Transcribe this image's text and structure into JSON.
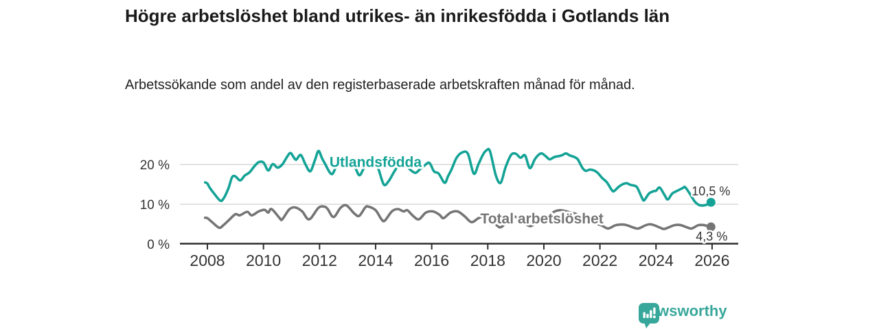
{
  "header": {
    "title": "Högre arbetslöshet bland utrikes- än inrikesfödda i Gotlands län",
    "subtitle": "Arbetssökande som andel av den registerbaserade arbetskraften månad för månad."
  },
  "footer": {
    "brand": "Newsworthy",
    "logo_icon": "speech-bubble-bar-chart-icon"
  },
  "colors": {
    "accent_teal": "#14a396",
    "series_gray": "#757575",
    "title_text": "#1a1a1a",
    "axis_text": "#333333",
    "gridline": "#d9d9d9",
    "axis_line": "#2e2e2e",
    "logo_teal": "#38a79b"
  },
  "chart_data": {
    "type": "line",
    "unit": "percent",
    "x_unit": "decimal years (monthly data)",
    "grid": "horizontal",
    "legend_position": "inline labels on lines",
    "ylim": [
      0,
      25
    ],
    "xlim": [
      2007.0,
      2026.9
    ],
    "x_ticks": [
      2008,
      2010,
      2012,
      2014,
      2016,
      2018,
      2020,
      2022,
      2024,
      2026
    ],
    "y_ticks": [
      {
        "value": 0,
        "label": "0 %"
      },
      {
        "value": 10,
        "label": "10 %"
      },
      {
        "value": 20,
        "label": "20 %"
      }
    ],
    "series": [
      {
        "name": "Utlandsfödda",
        "color": "#14a396",
        "end_label": "10,5 %",
        "last_value": 10.5,
        "label_pos": {
          "x": 2014.0,
          "y": 20.6
        },
        "points": [
          [
            2007.92,
            15.5
          ],
          [
            2008.0,
            15.2
          ],
          [
            2008.08,
            14.2
          ],
          [
            2008.25,
            12.6
          ],
          [
            2008.46,
            10.9
          ],
          [
            2008.58,
            11.5
          ],
          [
            2008.75,
            14.0
          ],
          [
            2008.88,
            16.8
          ],
          [
            2009.0,
            17.0
          ],
          [
            2009.17,
            16.0
          ],
          [
            2009.33,
            17.2
          ],
          [
            2009.5,
            18.0
          ],
          [
            2009.67,
            19.5
          ],
          [
            2009.83,
            20.6
          ],
          [
            2010.0,
            20.5
          ],
          [
            2010.17,
            18.5
          ],
          [
            2010.33,
            20.1
          ],
          [
            2010.5,
            19.2
          ],
          [
            2010.67,
            20.0
          ],
          [
            2010.83,
            21.8
          ],
          [
            2010.96,
            22.9
          ],
          [
            2011.08,
            21.8
          ],
          [
            2011.17,
            21.2
          ],
          [
            2011.33,
            22.4
          ],
          [
            2011.5,
            20.0
          ],
          [
            2011.67,
            18.3
          ],
          [
            2011.83,
            21.0
          ],
          [
            2011.96,
            23.4
          ],
          [
            2012.08,
            21.7
          ],
          [
            2012.17,
            20.5
          ],
          [
            2012.42,
            17.6
          ],
          [
            2012.58,
            19.2
          ],
          [
            2012.75,
            20.6
          ],
          [
            2012.92,
            21.6
          ],
          [
            2013.08,
            20.8
          ],
          [
            2013.25,
            19.5
          ],
          [
            2013.42,
            17.3
          ],
          [
            2013.58,
            19.0
          ],
          [
            2013.75,
            20.3
          ],
          [
            2013.92,
            20.9
          ],
          [
            2014.08,
            19.3
          ],
          [
            2014.29,
            15.0
          ],
          [
            2014.46,
            15.8
          ],
          [
            2014.63,
            17.8
          ],
          [
            2014.79,
            19.6
          ],
          [
            2014.92,
            20.5
          ],
          [
            2015.08,
            19.8
          ],
          [
            2015.25,
            18.6
          ],
          [
            2015.42,
            17.9
          ],
          [
            2015.58,
            18.8
          ],
          [
            2015.75,
            19.8
          ],
          [
            2015.92,
            20.4
          ],
          [
            2016.08,
            18.3
          ],
          [
            2016.25,
            17.7
          ],
          [
            2016.46,
            15.4
          ],
          [
            2016.58,
            17.0
          ],
          [
            2016.71,
            18.8
          ],
          [
            2016.88,
            21.6
          ],
          [
            2017.08,
            23.0
          ],
          [
            2017.29,
            22.7
          ],
          [
            2017.5,
            17.7
          ],
          [
            2017.67,
            20.1
          ],
          [
            2017.83,
            22.5
          ],
          [
            2017.96,
            23.6
          ],
          [
            2018.08,
            23.3
          ],
          [
            2018.29,
            17.2
          ],
          [
            2018.46,
            15.4
          ],
          [
            2018.63,
            19.2
          ],
          [
            2018.83,
            22.4
          ],
          [
            2019.0,
            22.7
          ],
          [
            2019.17,
            21.7
          ],
          [
            2019.33,
            22.3
          ],
          [
            2019.5,
            19.1
          ],
          [
            2019.67,
            21.2
          ],
          [
            2019.79,
            22.3
          ],
          [
            2019.92,
            22.8
          ],
          [
            2020.08,
            22.0
          ],
          [
            2020.21,
            21.3
          ],
          [
            2020.38,
            21.9
          ],
          [
            2020.54,
            22.1
          ],
          [
            2020.67,
            22.4
          ],
          [
            2020.79,
            22.8
          ],
          [
            2020.92,
            22.3
          ],
          [
            2021.08,
            21.9
          ],
          [
            2021.21,
            21.3
          ],
          [
            2021.38,
            19.1
          ],
          [
            2021.5,
            18.4
          ],
          [
            2021.63,
            18.7
          ],
          [
            2021.79,
            18.5
          ],
          [
            2021.92,
            17.9
          ],
          [
            2022.08,
            16.6
          ],
          [
            2022.25,
            15.5
          ],
          [
            2022.42,
            13.6
          ],
          [
            2022.5,
            13.3
          ],
          [
            2022.67,
            14.4
          ],
          [
            2022.83,
            15.1
          ],
          [
            2022.96,
            15.3
          ],
          [
            2023.08,
            14.9
          ],
          [
            2023.21,
            14.7
          ],
          [
            2023.33,
            14.2
          ],
          [
            2023.5,
            11.6
          ],
          [
            2023.58,
            11.0
          ],
          [
            2023.75,
            12.7
          ],
          [
            2023.92,
            13.3
          ],
          [
            2024.0,
            13.4
          ],
          [
            2024.13,
            14.2
          ],
          [
            2024.29,
            12.5
          ],
          [
            2024.42,
            11.2
          ],
          [
            2024.58,
            12.7
          ],
          [
            2024.79,
            13.5
          ],
          [
            2024.96,
            14.1
          ],
          [
            2025.04,
            14.3
          ],
          [
            2025.21,
            12.6
          ],
          [
            2025.38,
            10.7
          ],
          [
            2025.54,
            9.8
          ],
          [
            2025.71,
            9.7
          ],
          [
            2025.88,
            10.1
          ],
          [
            2025.96,
            10.5
          ]
        ]
      },
      {
        "name": "Total arbetslöshet",
        "color": "#757575",
        "end_label": "4,3 %",
        "last_value": 4.3,
        "label_pos": {
          "x": 2019.93,
          "y": 6.4
        },
        "points": [
          [
            2007.92,
            6.6
          ],
          [
            2008.0,
            6.5
          ],
          [
            2008.17,
            5.5
          ],
          [
            2008.42,
            4.1
          ],
          [
            2008.58,
            4.8
          ],
          [
            2008.75,
            5.9
          ],
          [
            2009.0,
            7.5
          ],
          [
            2009.15,
            7.2
          ],
          [
            2009.42,
            8.1
          ],
          [
            2009.58,
            7.2
          ],
          [
            2009.83,
            8.2
          ],
          [
            2010.04,
            8.6
          ],
          [
            2010.17,
            7.9
          ],
          [
            2010.29,
            8.8
          ],
          [
            2010.58,
            6.5
          ],
          [
            2010.67,
            6.2
          ],
          [
            2010.92,
            8.7
          ],
          [
            2011.13,
            9.2
          ],
          [
            2011.38,
            8.2
          ],
          [
            2011.63,
            6.2
          ],
          [
            2011.96,
            9.1
          ],
          [
            2012.17,
            9.4
          ],
          [
            2012.29,
            8.8
          ],
          [
            2012.5,
            6.8
          ],
          [
            2012.75,
            9.1
          ],
          [
            2012.96,
            9.7
          ],
          [
            2013.25,
            7.6
          ],
          [
            2013.42,
            7.1
          ],
          [
            2013.63,
            9.2
          ],
          [
            2013.75,
            9.4
          ],
          [
            2014.0,
            8.5
          ],
          [
            2014.21,
            6.2
          ],
          [
            2014.33,
            5.9
          ],
          [
            2014.58,
            8.2
          ],
          [
            2014.79,
            8.8
          ],
          [
            2015.0,
            8.2
          ],
          [
            2015.13,
            8.5
          ],
          [
            2015.33,
            7.1
          ],
          [
            2015.54,
            6.2
          ],
          [
            2015.79,
            7.9
          ],
          [
            2016.04,
            8.2
          ],
          [
            2016.27,
            7.4
          ],
          [
            2016.42,
            6.5
          ],
          [
            2016.67,
            7.9
          ],
          [
            2016.92,
            8.2
          ],
          [
            2017.17,
            7.0
          ],
          [
            2017.42,
            5.5
          ],
          [
            2017.67,
            6.5
          ],
          [
            2017.92,
            7.2
          ],
          [
            2018.08,
            6.8
          ],
          [
            2018.42,
            4.2
          ],
          [
            2018.67,
            5.6
          ],
          [
            2018.92,
            6.8
          ],
          [
            2019.08,
            6.5
          ],
          [
            2019.5,
            4.5
          ],
          [
            2019.75,
            5.8
          ],
          [
            2020.0,
            6.5
          ],
          [
            2020.33,
            8.0
          ],
          [
            2020.58,
            8.5
          ],
          [
            2020.92,
            8.0
          ],
          [
            2021.17,
            7.5
          ],
          [
            2021.5,
            6.0
          ],
          [
            2021.83,
            5.2
          ],
          [
            2022.08,
            4.6
          ],
          [
            2022.29,
            3.9
          ],
          [
            2022.55,
            4.7
          ],
          [
            2022.76,
            4.9
          ],
          [
            2022.93,
            4.8
          ],
          [
            2023.17,
            4.2
          ],
          [
            2023.37,
            3.9
          ],
          [
            2023.66,
            4.8
          ],
          [
            2023.86,
            4.9
          ],
          [
            2024.15,
            4.1
          ],
          [
            2024.3,
            3.8
          ],
          [
            2024.64,
            4.7
          ],
          [
            2024.85,
            4.8
          ],
          [
            2025.1,
            4.2
          ],
          [
            2025.27,
            3.9
          ],
          [
            2025.5,
            4.7
          ],
          [
            2025.67,
            4.8
          ],
          [
            2025.85,
            4.5
          ],
          [
            2025.96,
            4.3
          ]
        ]
      }
    ]
  }
}
